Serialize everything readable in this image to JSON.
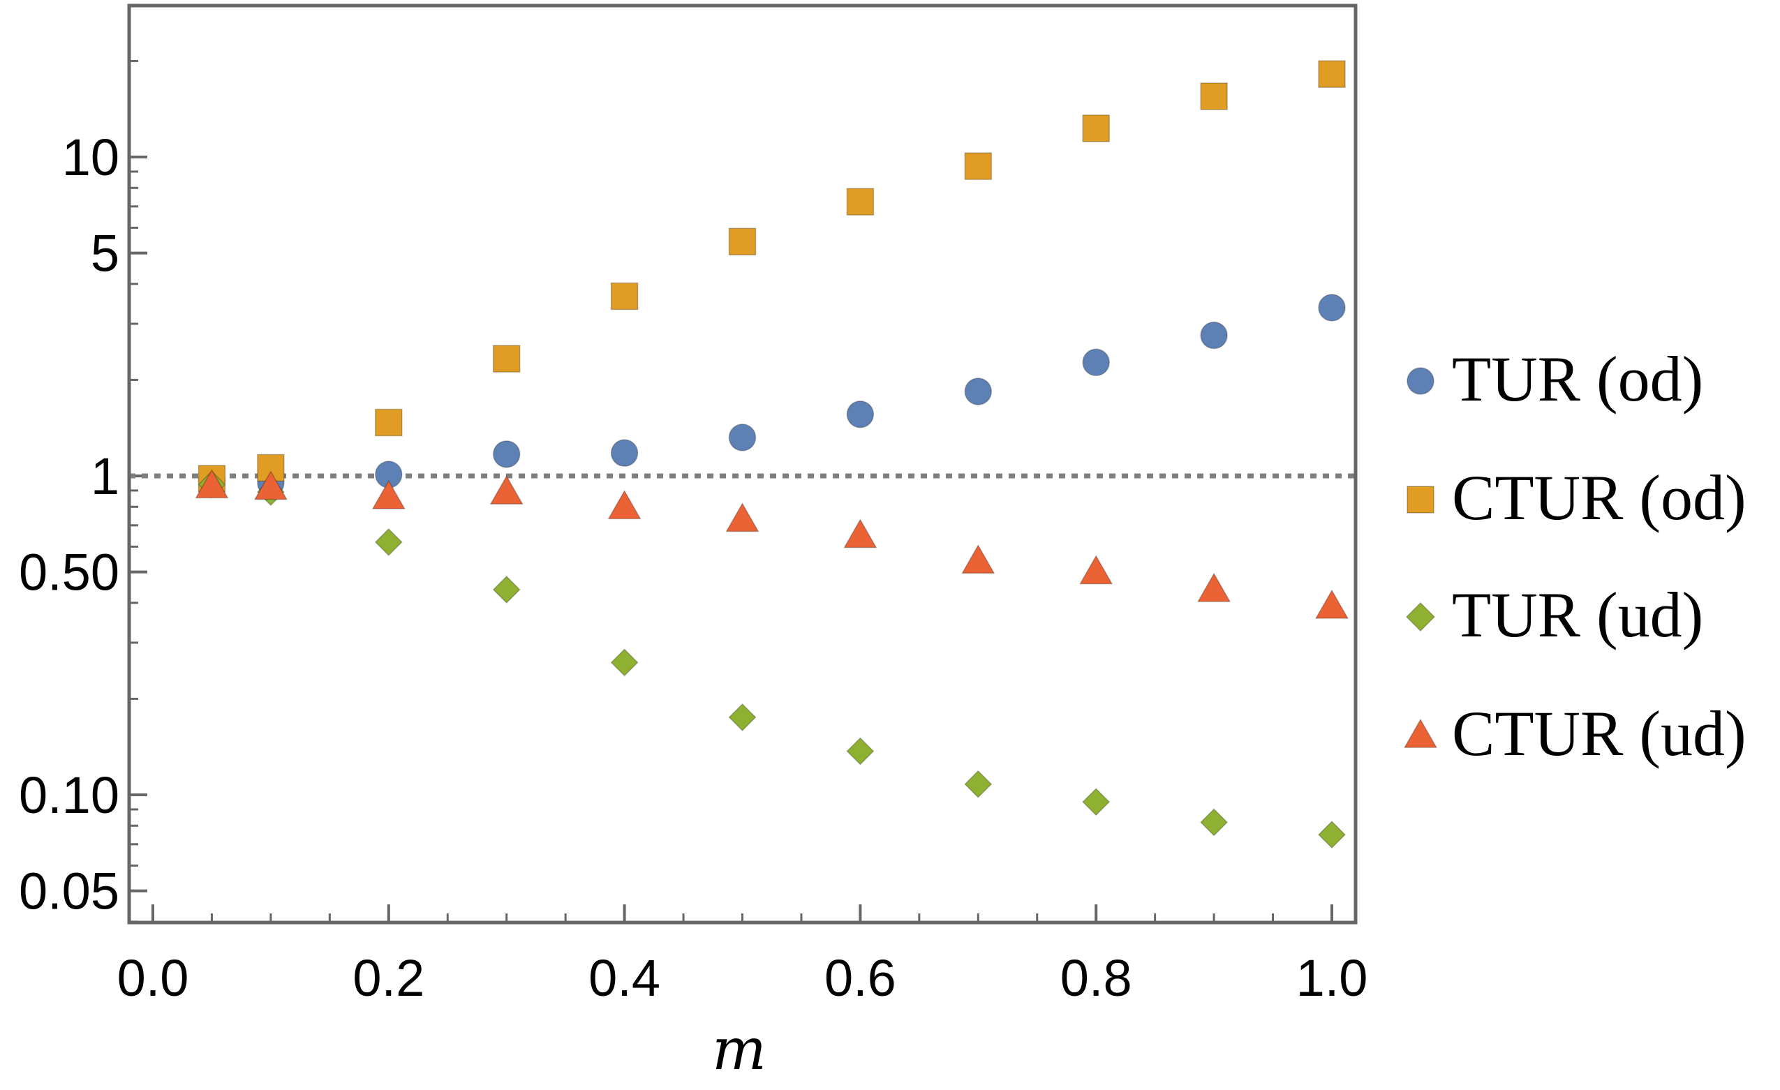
{
  "chart_data": {
    "type": "scatter",
    "title": "",
    "xlabel": "m",
    "ylabel": "",
    "xlim": [
      0.0,
      1.0
    ],
    "ylim": [
      0.04,
      30
    ],
    "yscale": "log",
    "grid": false,
    "legend_position": "right",
    "x_ticks": [
      {
        "value": 0.0,
        "label": "0.0"
      },
      {
        "value": 0.2,
        "label": "0.2"
      },
      {
        "value": 0.4,
        "label": "0.4"
      },
      {
        "value": 0.6,
        "label": "0.6"
      },
      {
        "value": 0.8,
        "label": "0.8"
      },
      {
        "value": 1.0,
        "label": "1.0"
      }
    ],
    "y_ticks": [
      {
        "value": 0.05,
        "label": "0.05"
      },
      {
        "value": 0.1,
        "label": "0.10"
      },
      {
        "value": 0.5,
        "label": "0.50"
      },
      {
        "value": 1,
        "label": "1"
      },
      {
        "value": 5,
        "label": "5"
      },
      {
        "value": 10,
        "label": "10"
      }
    ],
    "reference_line": {
      "y": 1,
      "style": "dotted",
      "color": "#7f7f7f"
    },
    "x": [
      0.05,
      0.1,
      0.2,
      0.3,
      0.4,
      0.5,
      0.6,
      0.7,
      0.8,
      0.9,
      1.0
    ],
    "series": [
      {
        "name": "TUR (od)",
        "marker": "circle",
        "color": "#5e81b5",
        "values": [
          0.97,
          0.95,
          1.01,
          1.17,
          1.18,
          1.32,
          1.56,
          1.84,
          2.27,
          2.76,
          3.37
        ]
      },
      {
        "name": "CTUR (od)",
        "marker": "square",
        "color": "#e19c24",
        "values": [
          0.98,
          1.06,
          1.47,
          2.33,
          3.66,
          5.43,
          7.24,
          9.36,
          12.3,
          15.5,
          18.2
        ]
      },
      {
        "name": "TUR (ud)",
        "marker": "diamond",
        "color": "#8fb131",
        "values": [
          0.94,
          0.89,
          0.62,
          0.44,
          0.26,
          0.175,
          0.137,
          0.108,
          0.095,
          0.082,
          0.075
        ]
      },
      {
        "name": "CTUR (ud)",
        "marker": "triangle",
        "color": "#eb6235",
        "values": [
          0.93,
          0.92,
          0.86,
          0.89,
          0.8,
          0.73,
          0.65,
          0.54,
          0.5,
          0.44,
          0.39
        ]
      }
    ]
  }
}
